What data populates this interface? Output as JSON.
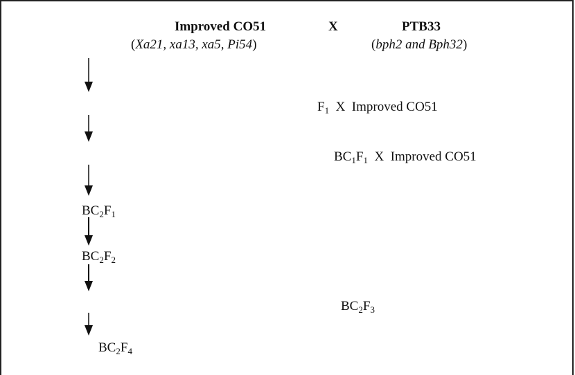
{
  "cross": {
    "parent1": {
      "name": "Improved CO51",
      "genes": [
        "Xa21",
        "xa13",
        "xa5",
        "Pi54"
      ],
      "genes_sep": ", "
    },
    "cross_symbol": "X",
    "parent2": {
      "name": "PTB33",
      "genes": [
        "bph2",
        "Bph32"
      ],
      "genes_sep": " and "
    }
  },
  "generations": [
    {
      "id": "f1",
      "base": "F",
      "sub": "1",
      "label_suffix": "  X  Improved CO51"
    },
    {
      "id": "bc1f1",
      "parts": [
        [
          "BC",
          "1"
        ],
        [
          "F",
          "1"
        ]
      ],
      "label_suffix": "  X  Improved CO51"
    },
    {
      "id": "bc2f1",
      "parts": [
        [
          "BC",
          "2"
        ],
        [
          "F",
          "1"
        ]
      ]
    },
    {
      "id": "bc2f2",
      "parts": [
        [
          "BC",
          "2"
        ],
        [
          "F",
          "2"
        ]
      ]
    },
    {
      "id": "bc2f3",
      "parts": [
        [
          "BC",
          "2"
        ],
        [
          "F",
          "3"
        ]
      ]
    },
    {
      "id": "bc2f4",
      "parts": [
        [
          "BC",
          "2"
        ],
        [
          "F",
          "4"
        ]
      ]
    }
  ],
  "text": {
    "paren_open": "(",
    "paren_close": ")"
  }
}
